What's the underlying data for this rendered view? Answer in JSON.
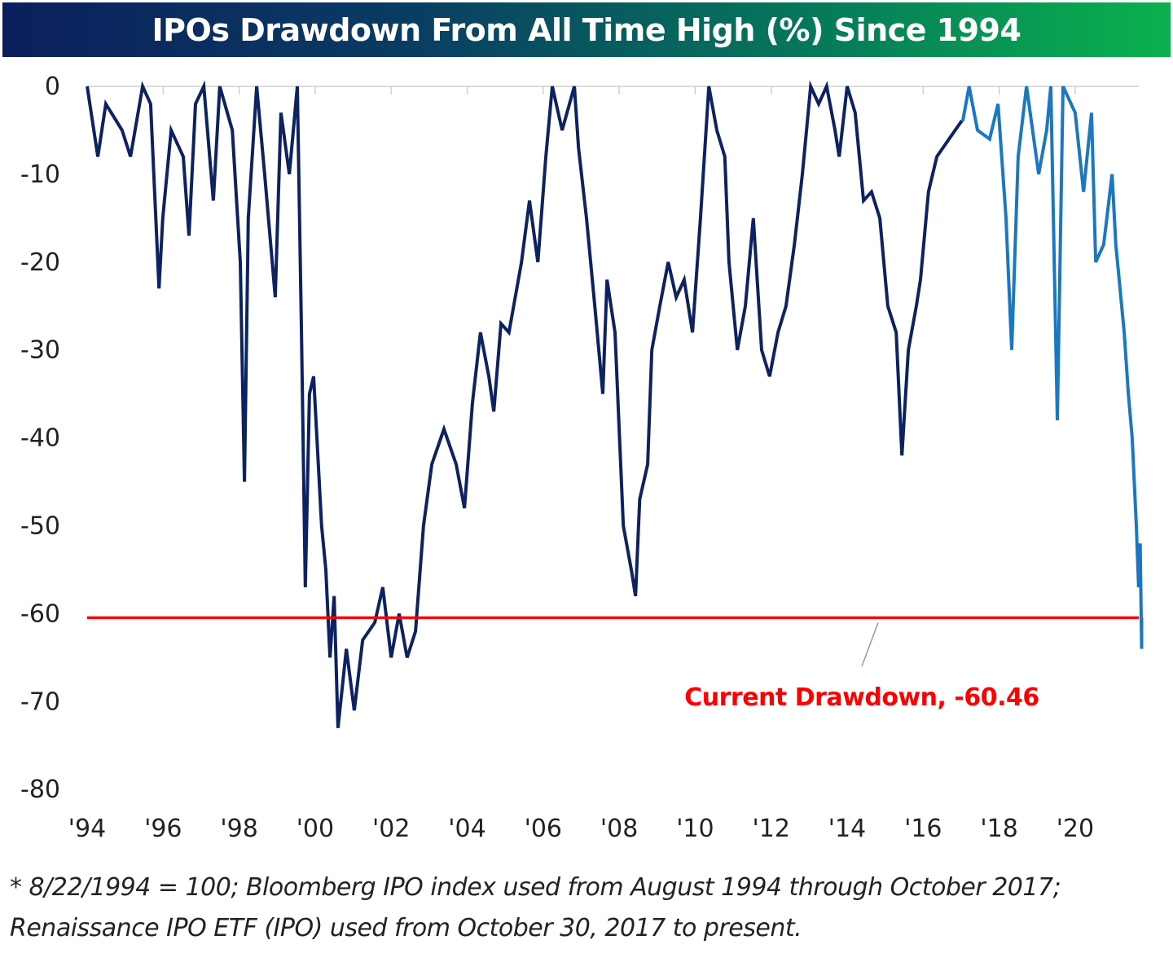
{
  "chart_data": {
    "type": "line",
    "title": "IPOs Drawdown From All Time High (%) Since 1994",
    "xlabel": "",
    "ylabel": "",
    "xlim": [
      1994,
      2021.8
    ],
    "ylim": [
      -80,
      0
    ],
    "y_ticks": [
      0,
      -10,
      -20,
      -30,
      -40,
      -50,
      -60,
      -70,
      -80
    ],
    "y_tick_labels": [
      "0",
      "-10",
      "-20",
      "-30",
      "-40",
      "-50",
      "-60",
      "-70",
      "-80"
    ],
    "x_ticks": [
      1994,
      1996,
      1998,
      2000,
      2002,
      2004,
      2006,
      2008,
      2010,
      2012,
      2014,
      2016,
      2018,
      2020
    ],
    "x_tick_labels": [
      "'94",
      "'96",
      "'98",
      "'00",
      "'02",
      "'04",
      "'06",
      "'08",
      "'10",
      "'12",
      "'14",
      "'16",
      "'18",
      "'20"
    ],
    "grid": false,
    "series": [
      {
        "name": "Bloomberg IPO index",
        "color": "#0d2260",
        "x": [
          1994.0,
          1994.28,
          1994.49,
          1994.92,
          1995.14,
          1995.46,
          1995.67,
          1995.89,
          1995.99,
          1996.21,
          1996.53,
          1996.68,
          1996.85,
          1997.07,
          1997.32,
          1997.49,
          1997.82,
          1998.03,
          1998.14,
          1998.24,
          1998.46,
          1998.67,
          1998.95,
          1999.1,
          1999.32,
          1999.53,
          1999.64,
          1999.74,
          1999.85,
          1999.96,
          2000.17,
          2000.28,
          2000.39,
          2000.5,
          2000.6,
          2000.82,
          2001.03,
          2001.25,
          2001.57,
          2001.78,
          2002.0,
          2002.21,
          2002.42,
          2002.64,
          2002.85,
          2003.07,
          2003.39,
          2003.71,
          2003.93,
          2004.14,
          2004.35,
          2004.57,
          2004.7,
          2004.89,
          2005.1,
          2005.43,
          2005.64,
          2005.86,
          2006.07,
          2006.24,
          2006.5,
          2006.82,
          2006.93,
          2007.14,
          2007.36,
          2007.57,
          2007.68,
          2007.89,
          2008.11,
          2008.32,
          2008.43,
          2008.54,
          2008.75,
          2008.86,
          2009.07,
          2009.29,
          2009.5,
          2009.71,
          2009.93,
          2010.14,
          2010.36,
          2010.57,
          2010.78,
          2010.89,
          2011.11,
          2011.32,
          2011.53,
          2011.75,
          2011.96,
          2012.18,
          2012.39,
          2012.61,
          2012.82,
          2013.04,
          2013.25,
          2013.46,
          2013.68,
          2013.79,
          2014.0,
          2014.21,
          2014.43,
          2014.64,
          2014.86,
          2015.07,
          2015.29,
          2015.44,
          2015.61,
          2015.82,
          2015.93,
          2016.14,
          2016.36,
          2016.68,
          2017.0,
          2017.04
        ],
        "y": [
          0,
          -8,
          -2,
          -5,
          -8,
          0,
          -2,
          -23,
          -15,
          -5,
          -8,
          -17,
          -2,
          0,
          -13,
          0,
          -5,
          -20,
          -45,
          -15,
          0,
          -10,
          -24,
          -3,
          -10,
          0,
          -28,
          -57,
          -35,
          -33,
          -50,
          -55,
          -65,
          -58,
          -73,
          -64,
          -71,
          -63,
          -61,
          -57,
          -65,
          -60,
          -65,
          -62,
          -50,
          -43,
          -39,
          -43,
          -48,
          -36,
          -28,
          -33,
          -37,
          -27,
          -28,
          -20,
          -13,
          -20,
          -8,
          0,
          -5,
          0,
          -7,
          -15,
          -25,
          -35,
          -22,
          -28,
          -50,
          -55,
          -58,
          -47,
          -43,
          -30,
          -25,
          -20,
          -24,
          -22,
          -28,
          -15,
          0,
          -5,
          -8,
          -20,
          -30,
          -25,
          -15,
          -30,
          -33,
          -28,
          -25,
          -18,
          -10,
          0,
          -2,
          0,
          -5,
          -8,
          0,
          -3,
          -13,
          -12,
          -15,
          -25,
          -28,
          -42,
          -30,
          -25,
          -22,
          -12,
          -8,
          -6,
          -4,
          -4
        ]
      },
      {
        "name": "Renaissance IPO ETF (IPO)",
        "color": "#1a78c2",
        "x": [
          2017.04,
          2017.21,
          2017.43,
          2017.75,
          2017.97,
          2018.18,
          2018.33,
          2018.5,
          2018.72,
          2019.04,
          2019.25,
          2019.36,
          2019.53,
          2019.68,
          2020.0,
          2020.22,
          2020.43,
          2020.54,
          2020.75,
          2020.97,
          2021.07,
          2021.29,
          2021.4,
          2021.5,
          2021.61,
          2021.67,
          2021.71,
          2021.75,
          2021.75
        ],
        "y": [
          -4,
          0,
          -5,
          -6,
          -2,
          -15,
          -30,
          -8,
          0,
          -10,
          -5,
          0,
          -38,
          0,
          -3,
          -12,
          -3,
          -20,
          -18,
          -10,
          -18,
          -28,
          -35,
          -40,
          -50,
          -57,
          -52,
          -64,
          -60.46
        ]
      }
    ],
    "reference_line": {
      "y": -60.46,
      "color": "#ff0000"
    },
    "annotations": [
      {
        "text": "Current Drawdown, -60.46",
        "color": "#ff0000"
      }
    ]
  },
  "footnote": {
    "line1": "* 8/22/1994 = 100;  Bloomberg IPO index used from August 1994 through October 2017;",
    "line2": "Renaissance IPO ETF (IPO) used from October 30, 2017 to present."
  }
}
